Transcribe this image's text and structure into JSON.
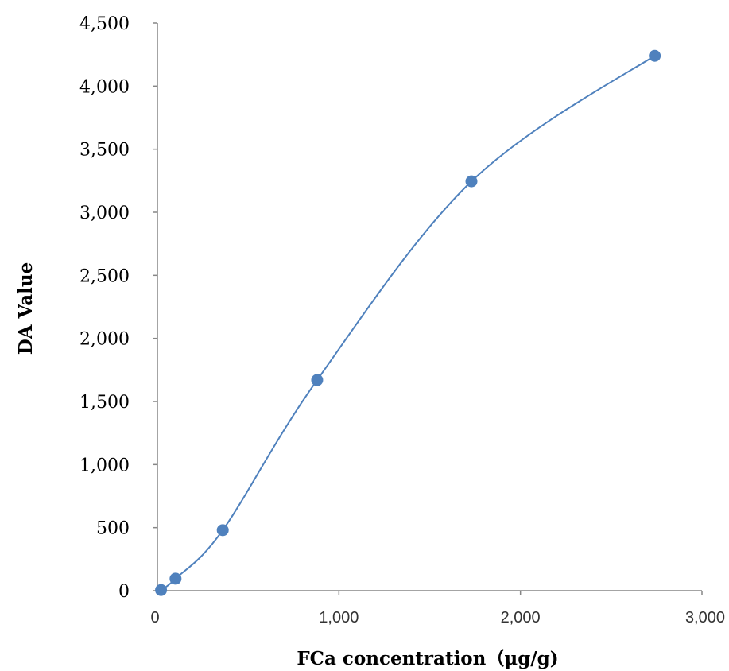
{
  "chart_data": {
    "type": "scatter",
    "title": "",
    "xlabel": "FCa concentration（μg/g)",
    "ylabel": "DA Value",
    "xlim": [
      0,
      3000
    ],
    "ylim": [
      0,
      4500
    ],
    "x_ticks": [
      "0",
      "1,000",
      "2,000",
      "3,000"
    ],
    "y_ticks": [
      "0",
      "500",
      "1,000",
      "1,500",
      "2,000",
      "2,500",
      "3,000",
      "3,500",
      "4,000",
      "4,500"
    ],
    "grid": false,
    "legend": "none",
    "trendline": "smooth curve through points",
    "series": [
      {
        "color": "#4f81bd",
        "points": [
          {
            "x": 20,
            "y": 5
          },
          {
            "x": 100,
            "y": 95
          },
          {
            "x": 360,
            "y": 480
          },
          {
            "x": 880,
            "y": 1670
          },
          {
            "x": 1730,
            "y": 3245
          },
          {
            "x": 2740,
            "y": 4240
          }
        ]
      }
    ]
  }
}
